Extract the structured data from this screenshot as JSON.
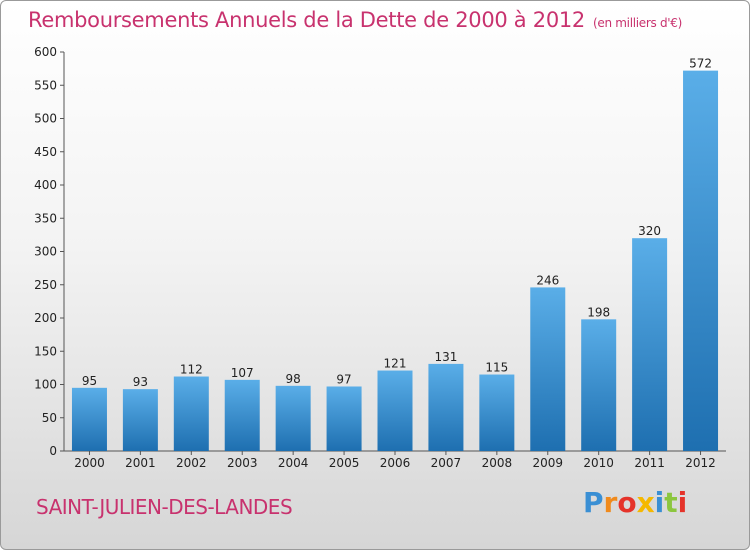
{
  "title": "Remboursements Annuels de la Dette de 2000 à 2012",
  "unit_note": "(en milliers d'€)",
  "commune": "SAINT-JULIEN-DES-LANDES",
  "logo": {
    "text": "Proxiti",
    "letters": [
      {
        "ch": "P",
        "color": "#3a8fd4"
      },
      {
        "ch": "r",
        "color": "#f08a1c"
      },
      {
        "ch": "o",
        "color": "#e5332a"
      },
      {
        "ch": "x",
        "color": "#f5b800"
      },
      {
        "ch": "i",
        "color": "#3a8fd4"
      },
      {
        "ch": "t",
        "color": "#8cc63f"
      },
      {
        "ch": "i",
        "color": "#e5332a"
      }
    ]
  },
  "colors": {
    "title": "#c8326e",
    "bar_top": "#5aaee8",
    "bar_bottom": "#1e6fb0"
  },
  "chart_data": {
    "type": "bar",
    "title": "Remboursements Annuels de la Dette de 2000 à 2012",
    "categories": [
      "2000",
      "2001",
      "2002",
      "2003",
      "2004",
      "2005",
      "2006",
      "2007",
      "2008",
      "2009",
      "2010",
      "2011",
      "2012"
    ],
    "values": [
      95,
      93,
      112,
      107,
      98,
      97,
      121,
      131,
      115,
      246,
      198,
      320,
      572
    ],
    "ylim": [
      0,
      600
    ],
    "yticks": [
      0,
      50,
      100,
      150,
      200,
      250,
      300,
      350,
      400,
      450,
      500,
      550,
      600
    ],
    "grid": false,
    "data_labels": true
  }
}
